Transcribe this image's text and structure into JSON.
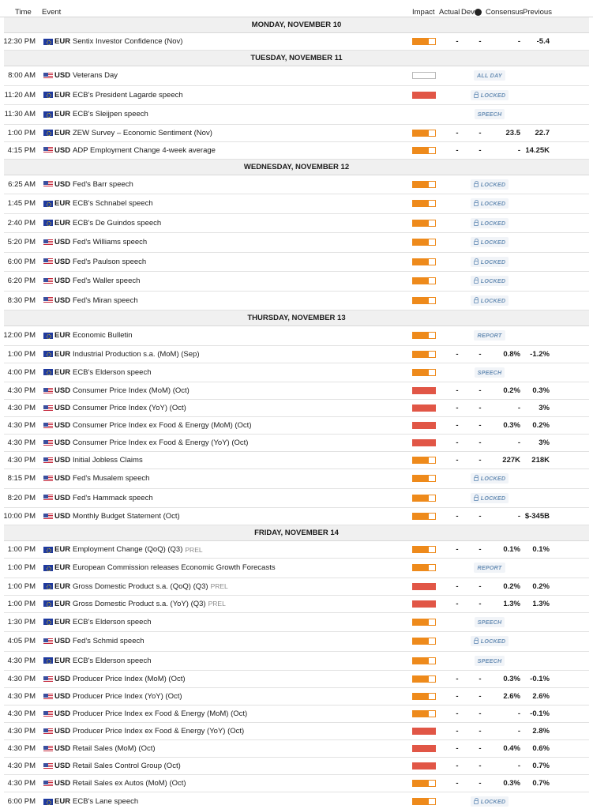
{
  "header": {
    "time": "Time",
    "event": "Event",
    "impact": "Impact",
    "actual": "Actual",
    "dev": "Dev",
    "info": "i",
    "consensus": "Consensus",
    "previous": "Previous"
  },
  "colors": {
    "impact_high": "#e15646",
    "impact_medium": "#ee8a1b",
    "tag_text": "#6a8fb5",
    "day_band": "#f0f0f0"
  },
  "sections": [
    {
      "day": "MONDAY, NOVEMBER 10",
      "rows": [
        {
          "time": "12:30 PM",
          "cur": "EUR",
          "event": "Sentix Investor Confidence (Nov)",
          "impact": "medium",
          "actual": "-",
          "dev": "-",
          "consensus": "-",
          "previous": "-5.4"
        }
      ]
    },
    {
      "day": "TUESDAY, NOVEMBER 11",
      "rows": [
        {
          "time": "8:00 AM",
          "cur": "USD",
          "event": "Veterans Day",
          "impact": "none",
          "tag": "ALL DAY"
        },
        {
          "time": "11:20 AM",
          "cur": "EUR",
          "event": "ECB's President Lagarde speech",
          "impact": "high",
          "tag": "LOCKED",
          "locked": true
        },
        {
          "time": "11:30 AM",
          "cur": "EUR",
          "event": "ECB's Sleijpen speech",
          "impact": "none-blank",
          "tag": "SPEECH"
        },
        {
          "time": "1:00 PM",
          "cur": "EUR",
          "event": "ZEW Survey – Economic Sentiment (Nov)",
          "impact": "medium",
          "actual": "-",
          "dev": "-",
          "consensus": "23.5",
          "previous": "22.7"
        },
        {
          "time": "4:15 PM",
          "cur": "USD",
          "event": "ADP Employment Change 4-week average",
          "impact": "medium",
          "actual": "-",
          "dev": "-",
          "consensus": "-",
          "previous": "14.25K"
        }
      ]
    },
    {
      "day": "WEDNESDAY, NOVEMBER 12",
      "rows": [
        {
          "time": "6:25 AM",
          "cur": "USD",
          "event": "Fed's Barr speech",
          "impact": "medium",
          "tag": "LOCKED",
          "locked": true
        },
        {
          "time": "1:45 PM",
          "cur": "EUR",
          "event": "ECB's Schnabel speech",
          "impact": "medium",
          "tag": "LOCKED",
          "locked": true
        },
        {
          "time": "2:40 PM",
          "cur": "EUR",
          "event": "ECB's De Guindos speech",
          "impact": "medium",
          "tag": "LOCKED",
          "locked": true
        },
        {
          "time": "5:20 PM",
          "cur": "USD",
          "event": "Fed's Williams speech",
          "impact": "medium",
          "tag": "LOCKED",
          "locked": true
        },
        {
          "time": "6:00 PM",
          "cur": "USD",
          "event": "Fed's Paulson speech",
          "impact": "medium",
          "tag": "LOCKED",
          "locked": true
        },
        {
          "time": "6:20 PM",
          "cur": "USD",
          "event": "Fed's Waller speech",
          "impact": "medium",
          "tag": "LOCKED",
          "locked": true
        },
        {
          "time": "8:30 PM",
          "cur": "USD",
          "event": "Fed's Miran speech",
          "impact": "medium",
          "tag": "LOCKED",
          "locked": true
        }
      ]
    },
    {
      "day": "THURSDAY, NOVEMBER 13",
      "rows": [
        {
          "time": "12:00 PM",
          "cur": "EUR",
          "event": "Economic Bulletin",
          "impact": "medium",
          "tag": "REPORT"
        },
        {
          "time": "1:00 PM",
          "cur": "EUR",
          "event": "Industrial Production s.a. (MoM) (Sep)",
          "impact": "medium",
          "actual": "-",
          "dev": "-",
          "consensus": "0.8%",
          "previous": "-1.2%"
        },
        {
          "time": "4:00 PM",
          "cur": "EUR",
          "event": "ECB's Elderson speech",
          "impact": "medium",
          "tag": "SPEECH"
        },
        {
          "time": "4:30 PM",
          "cur": "USD",
          "event": "Consumer Price Index (MoM) (Oct)",
          "impact": "high",
          "actual": "-",
          "dev": "-",
          "consensus": "0.2%",
          "previous": "0.3%"
        },
        {
          "time": "4:30 PM",
          "cur": "USD",
          "event": "Consumer Price Index (YoY) (Oct)",
          "impact": "high",
          "actual": "-",
          "dev": "-",
          "consensus": "-",
          "previous": "3%"
        },
        {
          "time": "4:30 PM",
          "cur": "USD",
          "event": "Consumer Price Index ex Food & Energy (MoM) (Oct)",
          "impact": "high",
          "actual": "-",
          "dev": "-",
          "consensus": "0.3%",
          "previous": "0.2%"
        },
        {
          "time": "4:30 PM",
          "cur": "USD",
          "event": "Consumer Price Index ex Food & Energy (YoY) (Oct)",
          "impact": "high",
          "actual": "-",
          "dev": "-",
          "consensus": "-",
          "previous": "3%"
        },
        {
          "time": "4:30 PM",
          "cur": "USD",
          "event": "Initial Jobless Claims",
          "impact": "medium",
          "actual": "-",
          "dev": "-",
          "consensus": "227K",
          "previous": "218K"
        },
        {
          "time": "8:15 PM",
          "cur": "USD",
          "event": "Fed's Musalem speech",
          "impact": "medium",
          "tag": "LOCKED",
          "locked": true
        },
        {
          "time": "8:20 PM",
          "cur": "USD",
          "event": "Fed's Hammack speech",
          "impact": "medium",
          "tag": "LOCKED",
          "locked": true
        },
        {
          "time": "10:00 PM",
          "cur": "USD",
          "event": "Monthly Budget Statement (Oct)",
          "impact": "medium",
          "actual": "-",
          "dev": "-",
          "consensus": "-",
          "previous": "$-345B"
        }
      ]
    },
    {
      "day": "FRIDAY, NOVEMBER 14",
      "rows": [
        {
          "time": "1:00 PM",
          "cur": "EUR",
          "event": "Employment Change (QoQ) (Q3)",
          "prel": "PREL",
          "impact": "medium",
          "actual": "-",
          "dev": "-",
          "consensus": "0.1%",
          "previous": "0.1%"
        },
        {
          "time": "1:00 PM",
          "cur": "EUR",
          "event": "European Commission releases Economic Growth Forecasts",
          "impact": "medium",
          "tag": "REPORT"
        },
        {
          "time": "1:00 PM",
          "cur": "EUR",
          "event": "Gross Domestic Product s.a. (QoQ) (Q3)",
          "prel": "PREL",
          "impact": "high",
          "actual": "-",
          "dev": "-",
          "consensus": "0.2%",
          "previous": "0.2%"
        },
        {
          "time": "1:00 PM",
          "cur": "EUR",
          "event": "Gross Domestic Product s.a. (YoY) (Q3)",
          "prel": "PREL",
          "impact": "high",
          "actual": "-",
          "dev": "-",
          "consensus": "1.3%",
          "previous": "1.3%"
        },
        {
          "time": "1:30 PM",
          "cur": "EUR",
          "event": "ECB's Elderson speech",
          "impact": "medium",
          "tag": "SPEECH"
        },
        {
          "time": "4:05 PM",
          "cur": "USD",
          "event": "Fed's Schmid speech",
          "impact": "medium",
          "tag": "LOCKED",
          "locked": true
        },
        {
          "time": "4:30 PM",
          "cur": "EUR",
          "event": "ECB's Elderson speech",
          "impact": "medium",
          "tag": "SPEECH"
        },
        {
          "time": "4:30 PM",
          "cur": "USD",
          "event": "Producer Price Index (MoM) (Oct)",
          "impact": "medium",
          "actual": "-",
          "dev": "-",
          "consensus": "0.3%",
          "previous": "-0.1%"
        },
        {
          "time": "4:30 PM",
          "cur": "USD",
          "event": "Producer Price Index (YoY) (Oct)",
          "impact": "medium",
          "actual": "-",
          "dev": "-",
          "consensus": "2.6%",
          "previous": "2.6%"
        },
        {
          "time": "4:30 PM",
          "cur": "USD",
          "event": "Producer Price Index ex Food & Energy (MoM) (Oct)",
          "impact": "medium",
          "actual": "-",
          "dev": "-",
          "consensus": "-",
          "previous": "-0.1%"
        },
        {
          "time": "4:30 PM",
          "cur": "USD",
          "event": "Producer Price Index ex Food & Energy (YoY) (Oct)",
          "impact": "high",
          "actual": "-",
          "dev": "-",
          "consensus": "-",
          "previous": "2.8%"
        },
        {
          "time": "4:30 PM",
          "cur": "USD",
          "event": "Retail Sales (MoM) (Oct)",
          "impact": "high",
          "actual": "-",
          "dev": "-",
          "consensus": "0.4%",
          "previous": "0.6%"
        },
        {
          "time": "4:30 PM",
          "cur": "USD",
          "event": "Retail Sales Control Group (Oct)",
          "impact": "high",
          "actual": "-",
          "dev": "-",
          "consensus": "-",
          "previous": "0.7%"
        },
        {
          "time": "4:30 PM",
          "cur": "USD",
          "event": "Retail Sales ex Autos (MoM) (Oct)",
          "impact": "medium",
          "actual": "-",
          "dev": "-",
          "consensus": "0.3%",
          "previous": "0.7%"
        },
        {
          "time": "6:00 PM",
          "cur": "EUR",
          "event": "ECB's Lane speech",
          "impact": "medium",
          "tag": "LOCKED",
          "locked": true
        }
      ]
    }
  ]
}
